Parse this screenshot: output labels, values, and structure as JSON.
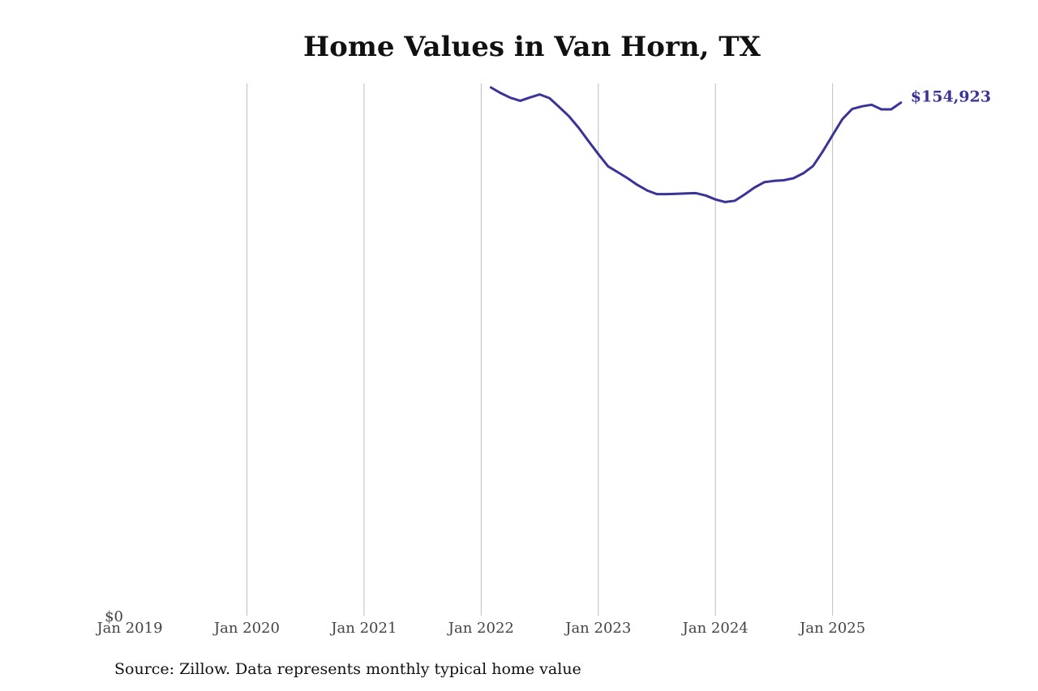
{
  "chart_data": {
    "type": "line",
    "title": "Home Values in Van Horn, TX",
    "xlabel": "",
    "ylabel": "",
    "x_ticks": [
      "Jan 2019",
      "Jan 2020",
      "Jan 2021",
      "Jan 2022",
      "Jan 2023",
      "Jan 2024",
      "Jan 2025"
    ],
    "y_ticks": [
      "$0"
    ],
    "xlim": [
      "2019-01",
      "2025-10"
    ],
    "ylim": [
      0,
      159500
    ],
    "grid": "vertical",
    "line_color": "#3a3398",
    "end_label": "$154,923",
    "series": [
      {
        "x": [
          "2022-02",
          "2022-03",
          "2022-04",
          "2022-05",
          "2022-06",
          "2022-07",
          "2022-08",
          "2022-09",
          "2022-10",
          "2022-11",
          "2022-12",
          "2023-01",
          "2023-02",
          "2023-03",
          "2023-04",
          "2023-05",
          "2023-06",
          "2023-07",
          "2023-08",
          "2023-09",
          "2023-10",
          "2023-11",
          "2023-12",
          "2024-01",
          "2024-02",
          "2024-03",
          "2024-04",
          "2024-05",
          "2024-06",
          "2024-07",
          "2024-08",
          "2024-09",
          "2024-10",
          "2024-11",
          "2024-12",
          "2025-01",
          "2025-02",
          "2025-03",
          "2025-04",
          "2025-05",
          "2025-06",
          "2025-07",
          "2025-08"
        ],
        "values": [
          159500,
          157800,
          156400,
          155500,
          156500,
          157400,
          156300,
          153600,
          150800,
          147300,
          143300,
          139400,
          135700,
          133900,
          132100,
          130100,
          128400,
          127300,
          127300,
          127400,
          127500,
          127600,
          126900,
          125700,
          124900,
          125300,
          127200,
          129300,
          130900,
          131300,
          131500,
          132100,
          133600,
          135800,
          140200,
          145100,
          149900,
          153000,
          153800,
          154300,
          152900,
          152900,
          154923
        ]
      }
    ]
  },
  "source": "Source: Zillow. Data represents monthly typical home value"
}
